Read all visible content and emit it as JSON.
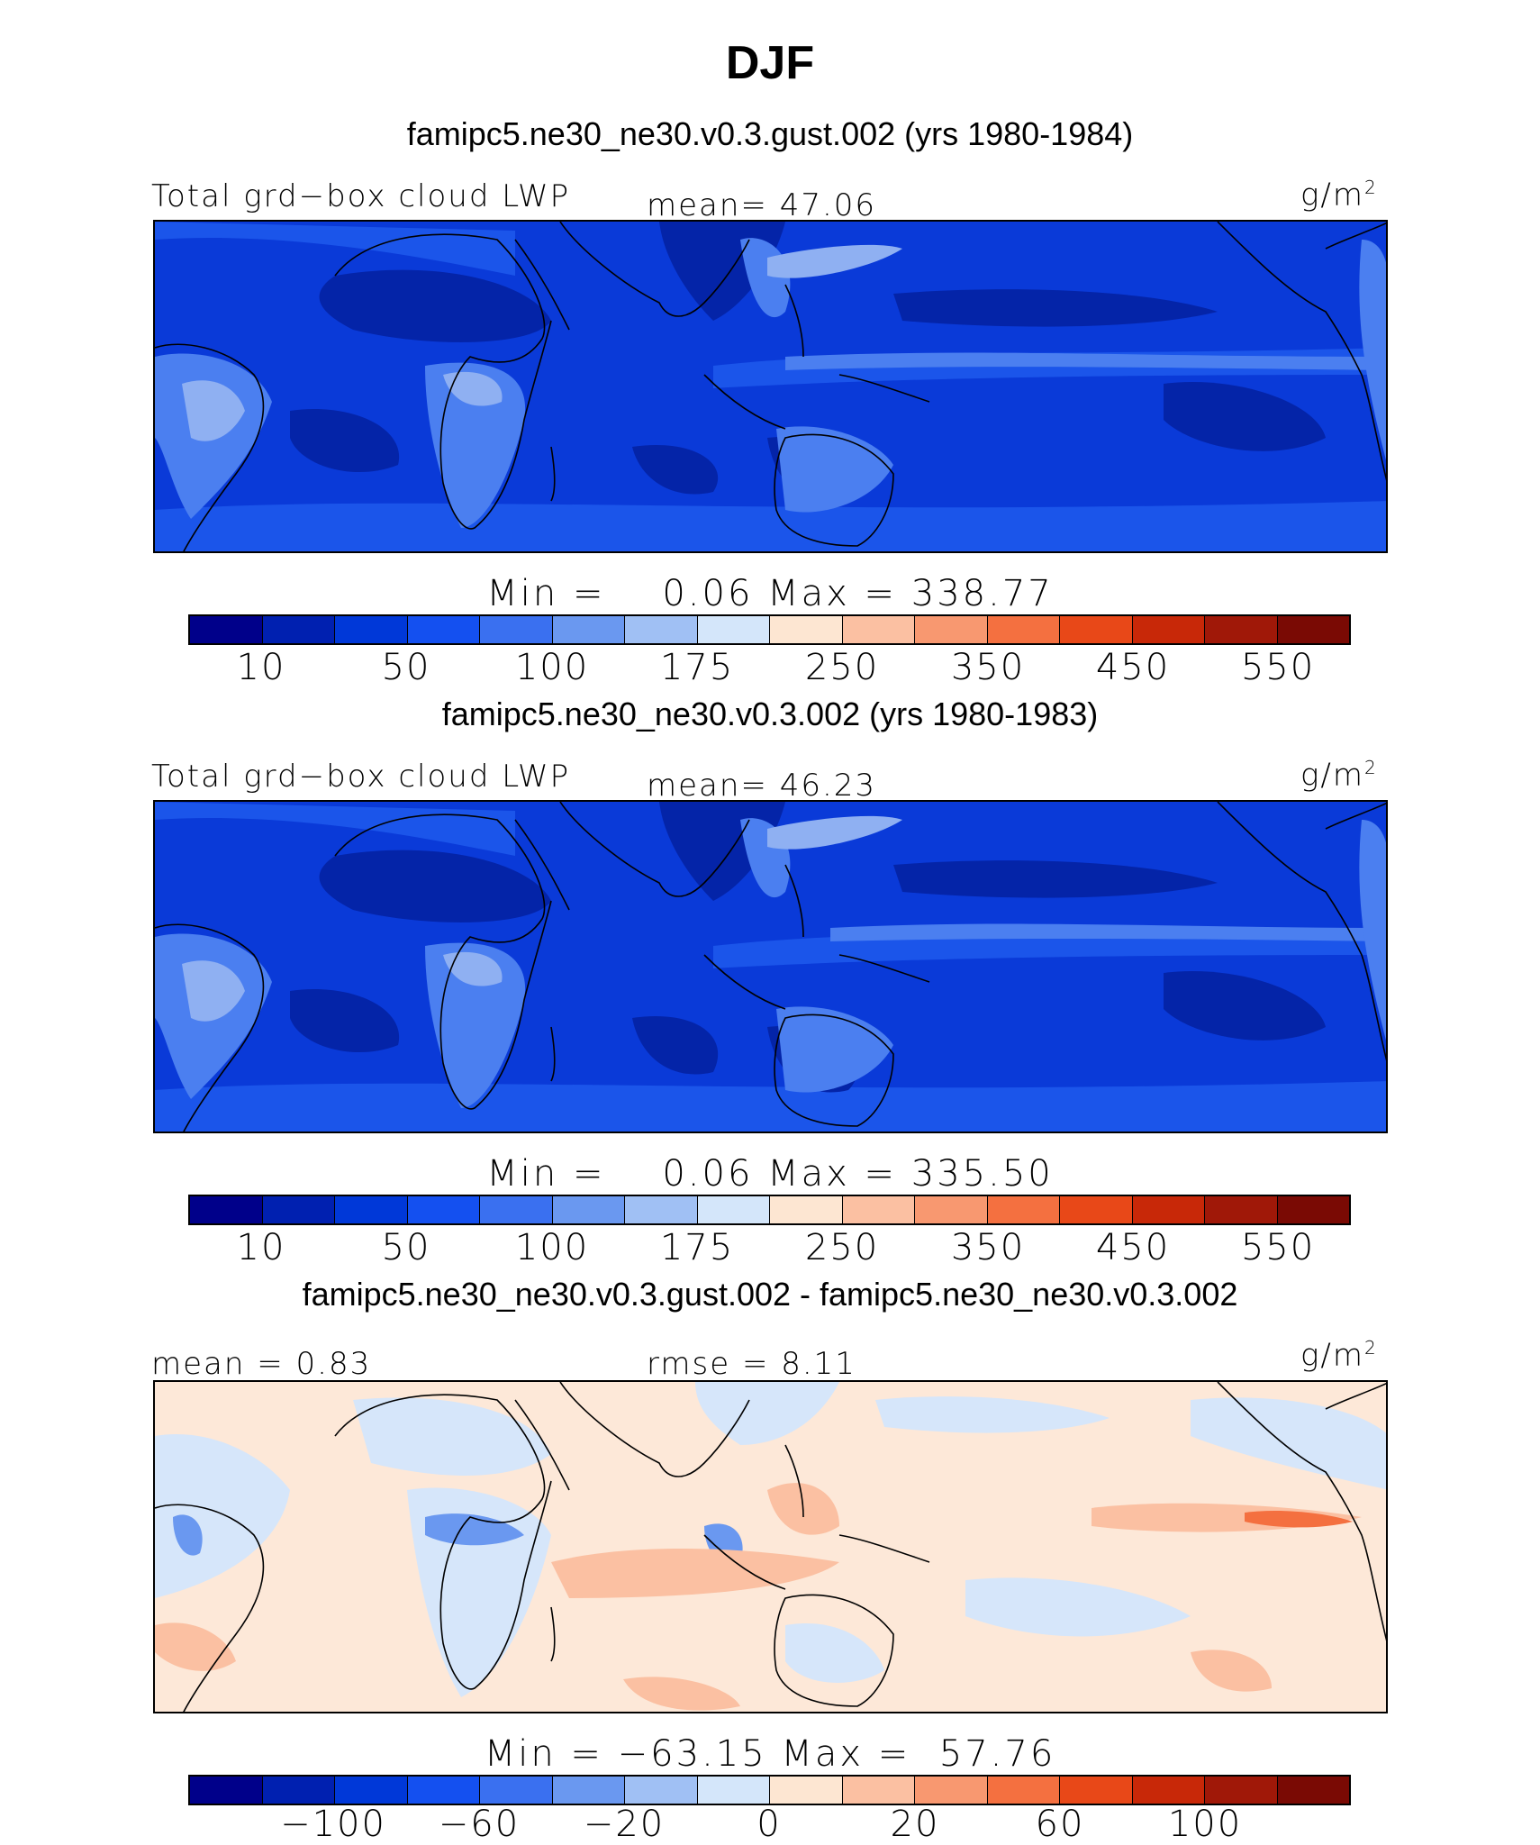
{
  "title": "DJF",
  "panels": [
    {
      "heading": "famipc5.ne30_ne30.v0.3.gust.002 (yrs 1980-1984)",
      "var_label": "Total grd−box cloud LWP",
      "stat_label": "mean=  47.06",
      "units_base": "g/m",
      "units_exp": "2",
      "minmax": "Min =    0.06 Max = 338.77",
      "colorbar_ticks": [
        "10",
        "50",
        "100",
        "175",
        "250",
        "350",
        "450",
        "550"
      ]
    },
    {
      "heading": "famipc5.ne30_ne30.v0.3.002 (yrs 1980-1983)",
      "var_label": "Total grd−box cloud LWP",
      "stat_label": "mean=  46.23",
      "units_base": "g/m",
      "units_exp": "2",
      "minmax": "Min =    0.06 Max = 335.50",
      "colorbar_ticks": [
        "10",
        "50",
        "100",
        "175",
        "250",
        "350",
        "450",
        "550"
      ]
    },
    {
      "heading": "famipc5.ne30_ne30.v0.3.gust.002 - famipc5.ne30_ne30.v0.3.002",
      "var_label": "mean =   0.83",
      "stat_label": "rmse =   8.11",
      "units_base": "g/m",
      "units_exp": "2",
      "minmax": "Min = −63.15 Max =  57.76",
      "colorbar_ticks": [
        "−100",
        "−60",
        "−20",
        "0",
        "20",
        "60",
        "100"
      ]
    }
  ],
  "colorbar_colors": [
    "#00008a",
    "#0020b0",
    "#0038d8",
    "#1450f0",
    "#3a70f0",
    "#6a98f0",
    "#a0c0f4",
    "#d4e6fa",
    "#fde6d2",
    "#fbc0a2",
    "#f89870",
    "#f47040",
    "#e84818",
    "#c82808",
    "#a01808",
    "#7a0a04"
  ],
  "map_colors": {
    "deep": "#0424a8",
    "base": "#0a3ad8",
    "mid": "#1b55ea",
    "light": "#4b7ff0",
    "pale": "#8fb0f2",
    "diff_base": "#fde8d8",
    "diff_cool": "#d6e6fa",
    "diff_blue": "#6a98f0",
    "diff_warm": "#fbc0a2",
    "diff_hot": "#f47040"
  }
}
